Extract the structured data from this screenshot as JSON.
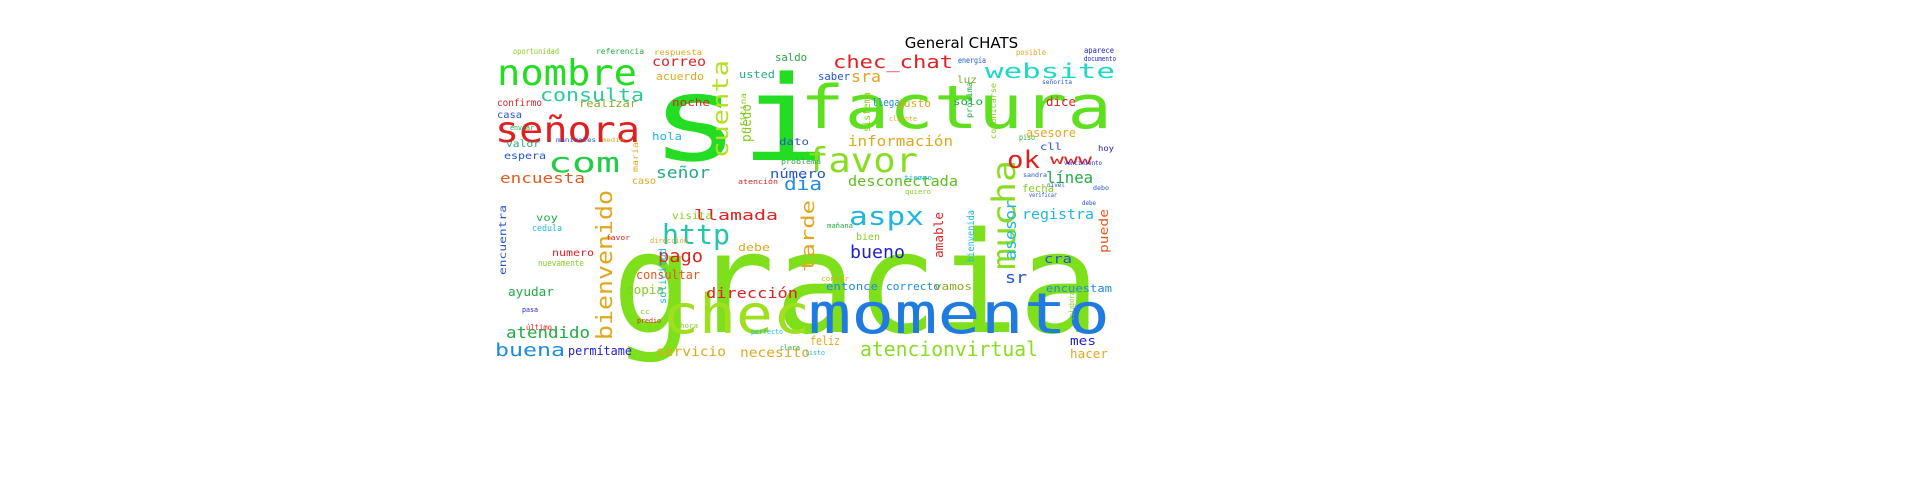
{
  "title": "General CHATS",
  "chart_data": {
    "type": "wordcloud",
    "title": "General CHATS",
    "words": [
      {
        "text": "gracia",
        "color": "#7ee01a"
      },
      {
        "text": "si",
        "color": "#22dd22"
      },
      {
        "text": "factura",
        "color": "#5ee01e"
      },
      {
        "text": "momento",
        "color": "#1f7be0"
      },
      {
        "text": "chec",
        "color": "#9ee020"
      },
      {
        "text": "nombre",
        "color": "#22dd22"
      },
      {
        "text": "señora",
        "color": "#e01f1f"
      },
      {
        "text": "com",
        "color": "#22cc44"
      },
      {
        "text": "favor",
        "color": "#88dd22"
      },
      {
        "text": "mucha",
        "color": "#88dd22"
      },
      {
        "text": "chec_chat",
        "color": "#dd2222"
      },
      {
        "text": "website",
        "color": "#1fd7c9"
      },
      {
        "text": "cuenta",
        "color": "#b5e021"
      },
      {
        "text": "bienvenido",
        "color": "#e0a71e"
      },
      {
        "text": "http",
        "color": "#22c6a8"
      },
      {
        "text": "consulta",
        "color": "#2ac9a0"
      },
      {
        "text": "aspx",
        "color": "#1fb7e0"
      },
      {
        "text": "ok",
        "color": "#e01f1f"
      },
      {
        "text": "atencionvirtual",
        "color": "#88dd22"
      },
      {
        "text": "buena",
        "color": "#1f8be0"
      },
      {
        "text": "bueno",
        "color": "#2222cc"
      },
      {
        "text": "tarde",
        "color": "#e0a71e"
      },
      {
        "text": "pago",
        "color": "#dd2222"
      },
      {
        "text": "señor",
        "color": "#22aa88"
      },
      {
        "text": "día",
        "color": "#1f8be0"
      },
      {
        "text": "información",
        "color": "#e0a71e"
      },
      {
        "text": "encuesta",
        "color": "#e05a1e"
      },
      {
        "text": "atendido",
        "color": "#22aa44"
      },
      {
        "text": "asesor",
        "color": "#1fb7e0"
      },
      {
        "text": "puedo",
        "color": "#88cc22"
      },
      {
        "text": "llamada",
        "color": "#dd2222"
      },
      {
        "text": "desconectada",
        "color": "#5ec01e"
      },
      {
        "text": "dirección",
        "color": "#dd2222"
      },
      {
        "text": "número",
        "color": "#2255cc"
      },
      {
        "text": "línea",
        "color": "#22aa44"
      },
      {
        "text": "registra",
        "color": "#1fb7e0"
      },
      {
        "text": "servicio",
        "color": "#e0a71e"
      },
      {
        "text": "necesito",
        "color": "#e0a71e"
      },
      {
        "text": "correo",
        "color": "#dd2222"
      },
      {
        "text": "acuerdo",
        "color": "#e0a71e"
      },
      {
        "text": "realizar",
        "color": "#88aa22"
      },
      {
        "text": "consultar",
        "color": "#e05a1e"
      },
      {
        "text": "copia",
        "color": "#88cc22"
      },
      {
        "text": "entonce",
        "color": "#1f8be0"
      },
      {
        "text": "correcto",
        "color": "#1f8be0"
      },
      {
        "text": "encuestam",
        "color": "#1f8be0"
      },
      {
        "text": "www",
        "color": "#dd2222"
      },
      {
        "text": "sra",
        "color": "#e0a71e"
      },
      {
        "text": "sr",
        "color": "#2255cc"
      },
      {
        "text": "cra",
        "color": "#2255cc"
      },
      {
        "text": "fecha",
        "color": "#88cc22"
      },
      {
        "text": "mes",
        "color": "#2222cc"
      },
      {
        "text": "hacer",
        "color": "#e0a71e"
      },
      {
        "text": "feliz",
        "color": "#e0a71e"
      },
      {
        "text": "vamos",
        "color": "#88aa22"
      },
      {
        "text": "debe",
        "color": "#e0a71e"
      },
      {
        "text": "amable",
        "color": "#dd2222"
      },
      {
        "text": "dice",
        "color": "#dd2222"
      },
      {
        "text": "ayudar",
        "color": "#22aa44"
      },
      {
        "text": "permítame",
        "color": "#2222cc"
      },
      {
        "text": "usted",
        "color": "#22aa88"
      },
      {
        "text": "saldo",
        "color": "#22aa44"
      },
      {
        "text": "saber",
        "color": "#2255cc"
      },
      {
        "text": "llega",
        "color": "#1f8be0"
      },
      {
        "text": "gusto",
        "color": "#e0a71e"
      },
      {
        "text": "noche",
        "color": "#dd2222"
      },
      {
        "text": "hola",
        "color": "#1fb7e0"
      },
      {
        "text": "caso",
        "color": "#e0a71e"
      },
      {
        "text": "visita",
        "color": "#88cc22"
      },
      {
        "text": "dato",
        "color": "#2255cc"
      },
      {
        "text": "solo",
        "color": "#22aa44"
      },
      {
        "text": "luz",
        "color": "#88aa22"
      },
      {
        "text": "cll",
        "color": "#2255cc"
      },
      {
        "text": "casa",
        "color": "#2255cc"
      },
      {
        "text": "confirmo",
        "color": "#dd2222"
      },
      {
        "text": "valor",
        "color": "#22aa88"
      },
      {
        "text": "espera",
        "color": "#2255cc"
      },
      {
        "text": "voy",
        "color": "#22aa44"
      },
      {
        "text": "cedula",
        "color": "#1fb7e0"
      },
      {
        "text": "numero",
        "color": "#dd2222"
      },
      {
        "text": "encuentra",
        "color": "#2255cc"
      },
      {
        "text": "nuevamente",
        "color": "#88cc22"
      },
      {
        "text": "sistema",
        "color": "#88cc22"
      },
      {
        "text": "puede",
        "color": "#e05a1e"
      },
      {
        "text": "bien",
        "color": "#88cc22"
      },
      {
        "text": "bienvenida",
        "color": "#1fb7e0"
      },
      {
        "text": "solicitud",
        "color": "#1fb7e0"
      },
      {
        "text": "oportunidad",
        "color": "#88cc22"
      },
      {
        "text": "referencia",
        "color": "#22aa44"
      },
      {
        "text": "respuesta",
        "color": "#e0a71e"
      },
      {
        "text": "energía",
        "color": "#2255cc"
      },
      {
        "text": "posible",
        "color": "#e0a71e"
      },
      {
        "text": "aparece",
        "color": "#2222cc"
      },
      {
        "text": "documento",
        "color": "#2222cc"
      },
      {
        "text": "oficina",
        "color": "#88cc22"
      },
      {
        "text": "comunicarse",
        "color": "#88cc22"
      },
      {
        "text": "próxima",
        "color": "#22aa44"
      },
      {
        "text": "piso",
        "color": "#22aa44"
      },
      {
        "text": "hoy",
        "color": "#2222cc"
      },
      {
        "text": "enviar",
        "color": "#22aa44"
      },
      {
        "text": "maría",
        "color": "#e0a71e"
      },
      {
        "text": "asesore",
        "color": "#e0a71e"
      },
      {
        "text": "último",
        "color": "#dd2222"
      },
      {
        "text": "pasa",
        "color": "#2222cc"
      },
      {
        "text": "perfecto",
        "color": "#1fb7e0"
      },
      {
        "text": "clara",
        "color": "#22aa44"
      },
      {
        "text": "listo",
        "color": "#1fb7e0"
      },
      {
        "text": "cliente",
        "color": "#e0a71e"
      },
      {
        "text": "contar",
        "color": "#e0a71e"
      },
      {
        "text": "quiero",
        "color": "#88cc22"
      },
      {
        "text": "atención",
        "color": "#dd2222"
      },
      {
        "text": "dirección",
        "color": "#e0a71e"
      },
      {
        "text": "problema",
        "color": "#22aa44"
      },
      {
        "text": "mañana",
        "color": "#22aa44"
      },
      {
        "text": "sandra",
        "color": "#2255cc"
      },
      {
        "text": "verificar",
        "color": "#2255cc"
      },
      {
        "text": "debo",
        "color": "#2255cc"
      },
      {
        "text": "nivel",
        "color": "#2255cc"
      },
      {
        "text": "señorita",
        "color": "#2255cc"
      },
      {
        "text": "vencimiento",
        "color": "#2222cc"
      },
      {
        "text": "tiempo",
        "color": "#1fb7e0"
      },
      {
        "text": "medio",
        "color": "#e0a71e"
      },
      {
        "text": "manizales",
        "color": "#2255cc"
      },
      {
        "text": "favor",
        "color": "#dd2222"
      },
      {
        "text": "predio",
        "color": "#dd2222"
      },
      {
        "text": "hora",
        "color": "#88cc22"
      },
      {
        "text": "cc",
        "color": "#88cc22"
      },
      {
        "text": "colaborar",
        "color": "#88cc22"
      },
      {
        "text": "debe",
        "color": "#2255cc"
      }
    ]
  }
}
